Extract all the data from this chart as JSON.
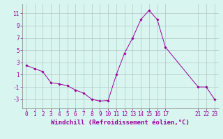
{
  "x": [
    0,
    1,
    2,
    3,
    4,
    5,
    6,
    7,
    8,
    9,
    10,
    11,
    12,
    13,
    14,
    15,
    16,
    17,
    21,
    22,
    23
  ],
  "y": [
    2.5,
    2.0,
    1.5,
    -0.3,
    -0.5,
    -0.8,
    -1.5,
    -2.0,
    -3.0,
    -3.3,
    -3.2,
    1.0,
    4.5,
    7.0,
    10.0,
    11.5,
    10.0,
    5.5,
    -1.0,
    -1.0,
    -3.0
  ],
  "line_color": "#990099",
  "marker": "D",
  "marker_size": 1.8,
  "bg_color": "#d8f5f0",
  "grid_color": "#b0c8c8",
  "yticks": [
    -3,
    -1,
    1,
    3,
    5,
    7,
    9,
    11
  ],
  "xticks": [
    0,
    1,
    2,
    3,
    4,
    5,
    6,
    7,
    8,
    9,
    10,
    11,
    12,
    13,
    14,
    15,
    16,
    17,
    21,
    22,
    23
  ],
  "xlim": [
    -0.5,
    23.5
  ],
  "ylim": [
    -4.5,
    12.5
  ],
  "xlabel": "Windchill (Refroidissement éolien,°C)",
  "tick_color": "#990099",
  "label_color": "#990099",
  "font_size": 5.5,
  "xlabel_font_size": 6.5,
  "line_width": 0.7
}
